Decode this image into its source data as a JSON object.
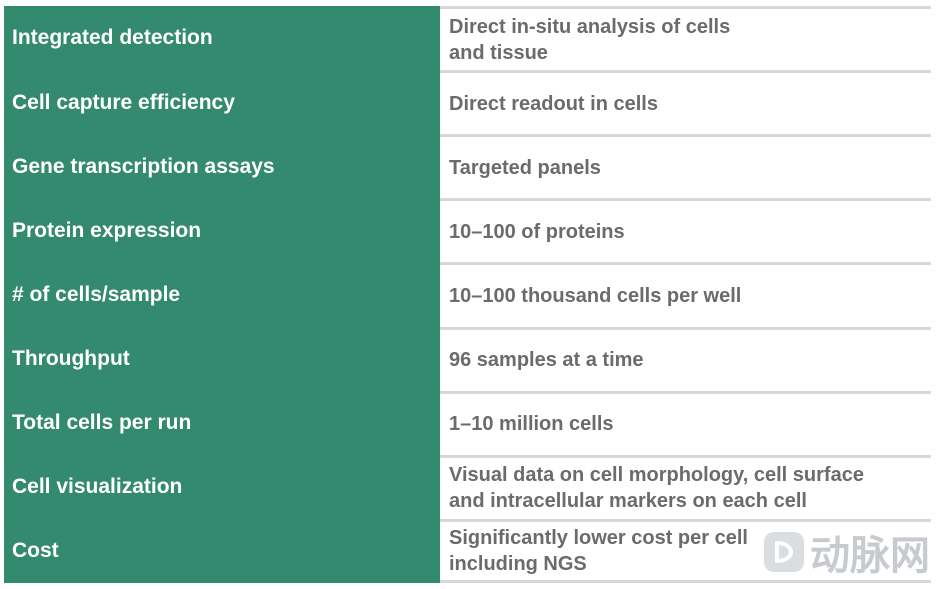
{
  "rows": [
    {
      "label": "Integrated detection",
      "value": "Direct in-situ analysis of cells\nand tissue"
    },
    {
      "label": "Cell capture efficiency",
      "value": "Direct readout in cells"
    },
    {
      "label": "Gene transcription assays",
      "value": "Targeted panels"
    },
    {
      "label": "Protein expression",
      "value": "10–100 of proteins"
    },
    {
      "label": "# of cells/sample",
      "value": "10–100 thousand cells per well"
    },
    {
      "label": "Throughput",
      "value": "96 samples at a time"
    },
    {
      "label": "Total cells per run",
      "value": "1–10 million cells"
    },
    {
      "label": "Cell visualization",
      "value": "Visual data on cell morphology, cell surface\nand intracellular markers on each cell"
    },
    {
      "label": "Cost",
      "value": "Significantly lower cost per cell\nincluding NGS"
    }
  ],
  "watermark": {
    "text": "动脉网",
    "icon": "arterial-network-logo-icon"
  },
  "colors": {
    "label_bg": "#338a6e",
    "value_text": "#6b6b6b",
    "divider": "#d8d8d8"
  }
}
